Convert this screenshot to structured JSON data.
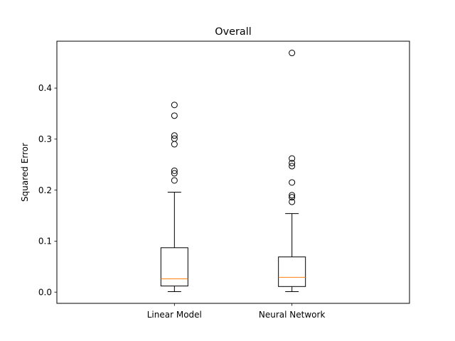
{
  "chart_data": {
    "type": "box",
    "title": "Overall",
    "xlabel": "",
    "ylabel": "Squared Error",
    "ylim": [
      -0.022,
      0.492
    ],
    "yticks": [
      0.0,
      0.1,
      0.2,
      0.3,
      0.4
    ],
    "ytick_labels": [
      "0.0",
      "0.1",
      "0.2",
      "0.3",
      "0.4"
    ],
    "grid": false,
    "median_color": "#ff7f0e",
    "box_color": "#000000",
    "categories": [
      "Linear Model",
      "Neural Network"
    ],
    "boxes": [
      {
        "label": "Linear Model",
        "whisker_low": 0.001,
        "q1": 0.012,
        "median": 0.026,
        "q3": 0.087,
        "whisker_high": 0.196,
        "outliers": [
          0.219,
          0.233,
          0.238,
          0.29,
          0.301,
          0.307,
          0.346,
          0.367
        ]
      },
      {
        "label": "Neural Network",
        "whisker_low": 0.001,
        "q1": 0.011,
        "median": 0.029,
        "q3": 0.069,
        "whisker_high": 0.154,
        "outliers": [
          0.177,
          0.186,
          0.19,
          0.215,
          0.247,
          0.253,
          0.262,
          0.469
        ]
      }
    ]
  }
}
